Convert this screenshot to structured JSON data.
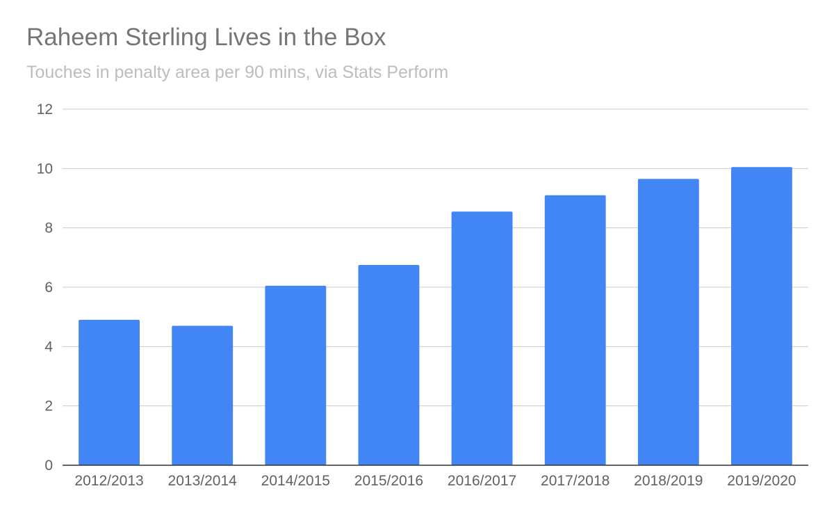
{
  "chart_data": {
    "type": "bar",
    "title": "Raheem Sterling Lives in the Box",
    "subtitle": "Touches in penalty area per 90 mins, via Stats Perform",
    "xlabel": "",
    "ylabel": "",
    "categories": [
      "2012/2013",
      "2013/2014",
      "2014/2015",
      "2015/2016",
      "2016/2017",
      "2017/2018",
      "2018/2019",
      "2019/2020"
    ],
    "values": [
      4.9,
      4.7,
      6.05,
      6.75,
      8.55,
      9.1,
      9.65,
      10.05
    ],
    "ylim": [
      0,
      12
    ],
    "yticks": [
      "0",
      "2",
      "4",
      "6",
      "8",
      "10",
      "12"
    ],
    "grid": true,
    "legend": "none",
    "colors": {
      "bar": "#4285f4",
      "grid": "#cccccc",
      "axis": "#333333",
      "title": "#757575",
      "subtitle": "#bdbdbd",
      "labels": "#616161"
    }
  }
}
